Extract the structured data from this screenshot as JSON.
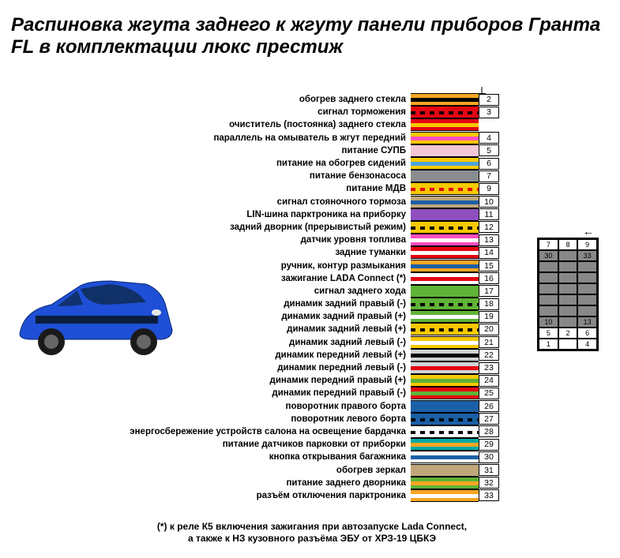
{
  "title": "Распиновка жгута заднего к жгуту панели приборов Гранта FL в комплектации люкс престиж",
  "footnote_line1": "(*) к реле К5 включения зажигания при автозапуске Lada Connect,",
  "footnote_line2": "а также к НЗ кузовного разъёма ЭБУ от ХРЗ-19 ЦБКЭ",
  "ground_symbol": "⏚",
  "conn_arrow": "←",
  "pins": [
    {
      "n": "2",
      "label": "обогрев заднего стекла",
      "c1": "#f5a623",
      "c2": "#000000",
      "style": "stripe"
    },
    {
      "n": "3",
      "label": "сигнал торможения",
      "c1": "#e30613",
      "c2": "#000000",
      "style": "dash"
    },
    {
      "n": "",
      "label": "очиститель (постоянка) заднего стекла",
      "c1": "#e30613",
      "c2": "#f7c800",
      "style": "stripe"
    },
    {
      "n": "4",
      "label": "параллель на омыватель в жгут передний",
      "c1": "#f7c800",
      "c2": "#ff4fbe",
      "style": "stripe"
    },
    {
      "n": "5",
      "label": "питание СУПБ",
      "c1": "#f3c6d7",
      "c2": null,
      "style": "solid"
    },
    {
      "n": "6",
      "label": "питание на обогрев сидений",
      "c1": "#f7c800",
      "c2": "#4aa3df",
      "style": "stripe"
    },
    {
      "n": "7",
      "label": "питание бензонасоса",
      "c1": "#8a8d8f",
      "c2": null,
      "style": "solid"
    },
    {
      "n": "9",
      "label": "питание МДВ",
      "c1": "#f7c800",
      "c2": "#e30613",
      "style": "dash"
    },
    {
      "n": "10",
      "label": "сигнал стояночного тормоза",
      "c1": "#bfa77a",
      "c2": "#1b5fa6",
      "style": "stripe"
    },
    {
      "n": "11",
      "label": "LIN-шина парктроника на приборку",
      "c1": "#8f4fbf",
      "c2": null,
      "style": "solid"
    },
    {
      "n": "12",
      "label": "задний дворник (прерывистый режим)",
      "c1": "#f7c800",
      "c2": "#000000",
      "style": "dash"
    },
    {
      "n": "13",
      "label": "датчик уровня топлива",
      "c1": "#ff4fbe",
      "c2": "#ffffff",
      "style": "stripe"
    },
    {
      "n": "14",
      "label": "задние туманки",
      "c1": "#e30613",
      "c2": "#ffffff",
      "style": "stripe"
    },
    {
      "n": "15",
      "label": "ручник, контур размыкания",
      "c1": "#f5a623",
      "c2": "#1b5fa6",
      "style": "stripe"
    },
    {
      "n": "16",
      "label": "зажигание LADA Connect (*)",
      "c1": "#ffffff",
      "c2": "#e30613",
      "style": "stripe"
    },
    {
      "n": "17",
      "label": "сигнал заднего хода",
      "c1": "#5fb336",
      "c2": null,
      "style": "solid"
    },
    {
      "n": "18",
      "label": "динамик задний правый (-)",
      "c1": "#5fb336",
      "c2": "#000000",
      "style": "dash"
    },
    {
      "n": "19",
      "label": "динамик задний правый (+)",
      "c1": "#5fb336",
      "c2": "#ffffff",
      "style": "stripe"
    },
    {
      "n": "20",
      "label": "динамик задний левый (+)",
      "c1": "#f7c800",
      "c2": "#000000",
      "style": "dash"
    },
    {
      "n": "21",
      "label": "динамик задний левый (-)",
      "c1": "#f7c800",
      "c2": "#ffffff",
      "style": "stripe"
    },
    {
      "n": "22",
      "label": "динамик передний левый (+)",
      "c1": "#d0d3d4",
      "c2": "#000000",
      "style": "stripe"
    },
    {
      "n": "23",
      "label": "динамик передний левый (-)",
      "c1": "#d0d3d4",
      "c2": "#e30613",
      "style": "stripe"
    },
    {
      "n": "24",
      "label": "динамик передний правый (+)",
      "c1": "#f7c800",
      "c2": "#5fb336",
      "style": "stripe"
    },
    {
      "n": "25",
      "label": "динамик передний правый (-)",
      "c1": "#e30613",
      "c2": "#5fb336",
      "style": "stripe"
    },
    {
      "n": "26",
      "label": "поворотник правого борта",
      "c1": "#1b5fa6",
      "c2": null,
      "style": "solid"
    },
    {
      "n": "27",
      "label": "поворотник левого борта",
      "c1": "#1b5fa6",
      "c2": "#000000",
      "style": "dash"
    },
    {
      "n": "28",
      "label": "энергосбережение устройств салона на освещение бардачка",
      "c1": "#ffffff",
      "c2": "#000000",
      "style": "dash"
    },
    {
      "n": "29",
      "label": "питание датчиков парковки от приборки",
      "c1": "#00a9a5",
      "c2": "#f5a623",
      "style": "stripe"
    },
    {
      "n": "30",
      "label": "кнопка открывания багажника",
      "c1": "#ffffff",
      "c2": "#1b5fa6",
      "style": "stripe"
    },
    {
      "n": "31",
      "label": "обогрев зеркал",
      "c1": "#bfa77a",
      "c2": null,
      "style": "solid"
    },
    {
      "n": "32",
      "label": "питание заднего дворника",
      "c1": "#5fb336",
      "c2": "#f5a623",
      "style": "stripe"
    },
    {
      "n": "33",
      "label": "разъём отключения парктроника",
      "c1": "#f5a623",
      "c2": "#ffffff",
      "style": "stripe"
    }
  ],
  "connector_cells": [
    {
      "t": "7",
      "f": 0
    },
    {
      "t": "8",
      "f": 0
    },
    {
      "t": "9",
      "f": 0
    },
    {
      "t": "30",
      "f": 1
    },
    {
      "t": "",
      "f": 1
    },
    {
      "t": "33",
      "f": 1
    },
    {
      "t": "",
      "f": 1
    },
    {
      "t": "",
      "f": 1
    },
    {
      "t": "",
      "f": 1
    },
    {
      "t": "",
      "f": 1
    },
    {
      "t": "",
      "f": 1
    },
    {
      "t": "",
      "f": 1
    },
    {
      "t": "",
      "f": 1
    },
    {
      "t": "",
      "f": 1
    },
    {
      "t": "",
      "f": 1
    },
    {
      "t": "",
      "f": 1
    },
    {
      "t": "",
      "f": 1
    },
    {
      "t": "",
      "f": 1
    },
    {
      "t": "",
      "f": 1
    },
    {
      "t": "",
      "f": 1
    },
    {
      "t": "",
      "f": 1
    },
    {
      "t": "10",
      "f": 1
    },
    {
      "t": "",
      "f": 1
    },
    {
      "t": "13",
      "f": 1
    },
    {
      "t": "5",
      "f": 0
    },
    {
      "t": "2",
      "f": 0
    },
    {
      "t": "6",
      "f": 0
    },
    {
      "t": "1",
      "f": 0
    },
    {
      "t": "",
      "f": 0
    },
    {
      "t": "4",
      "f": 0
    }
  ],
  "car_color": "#1e4fd6"
}
